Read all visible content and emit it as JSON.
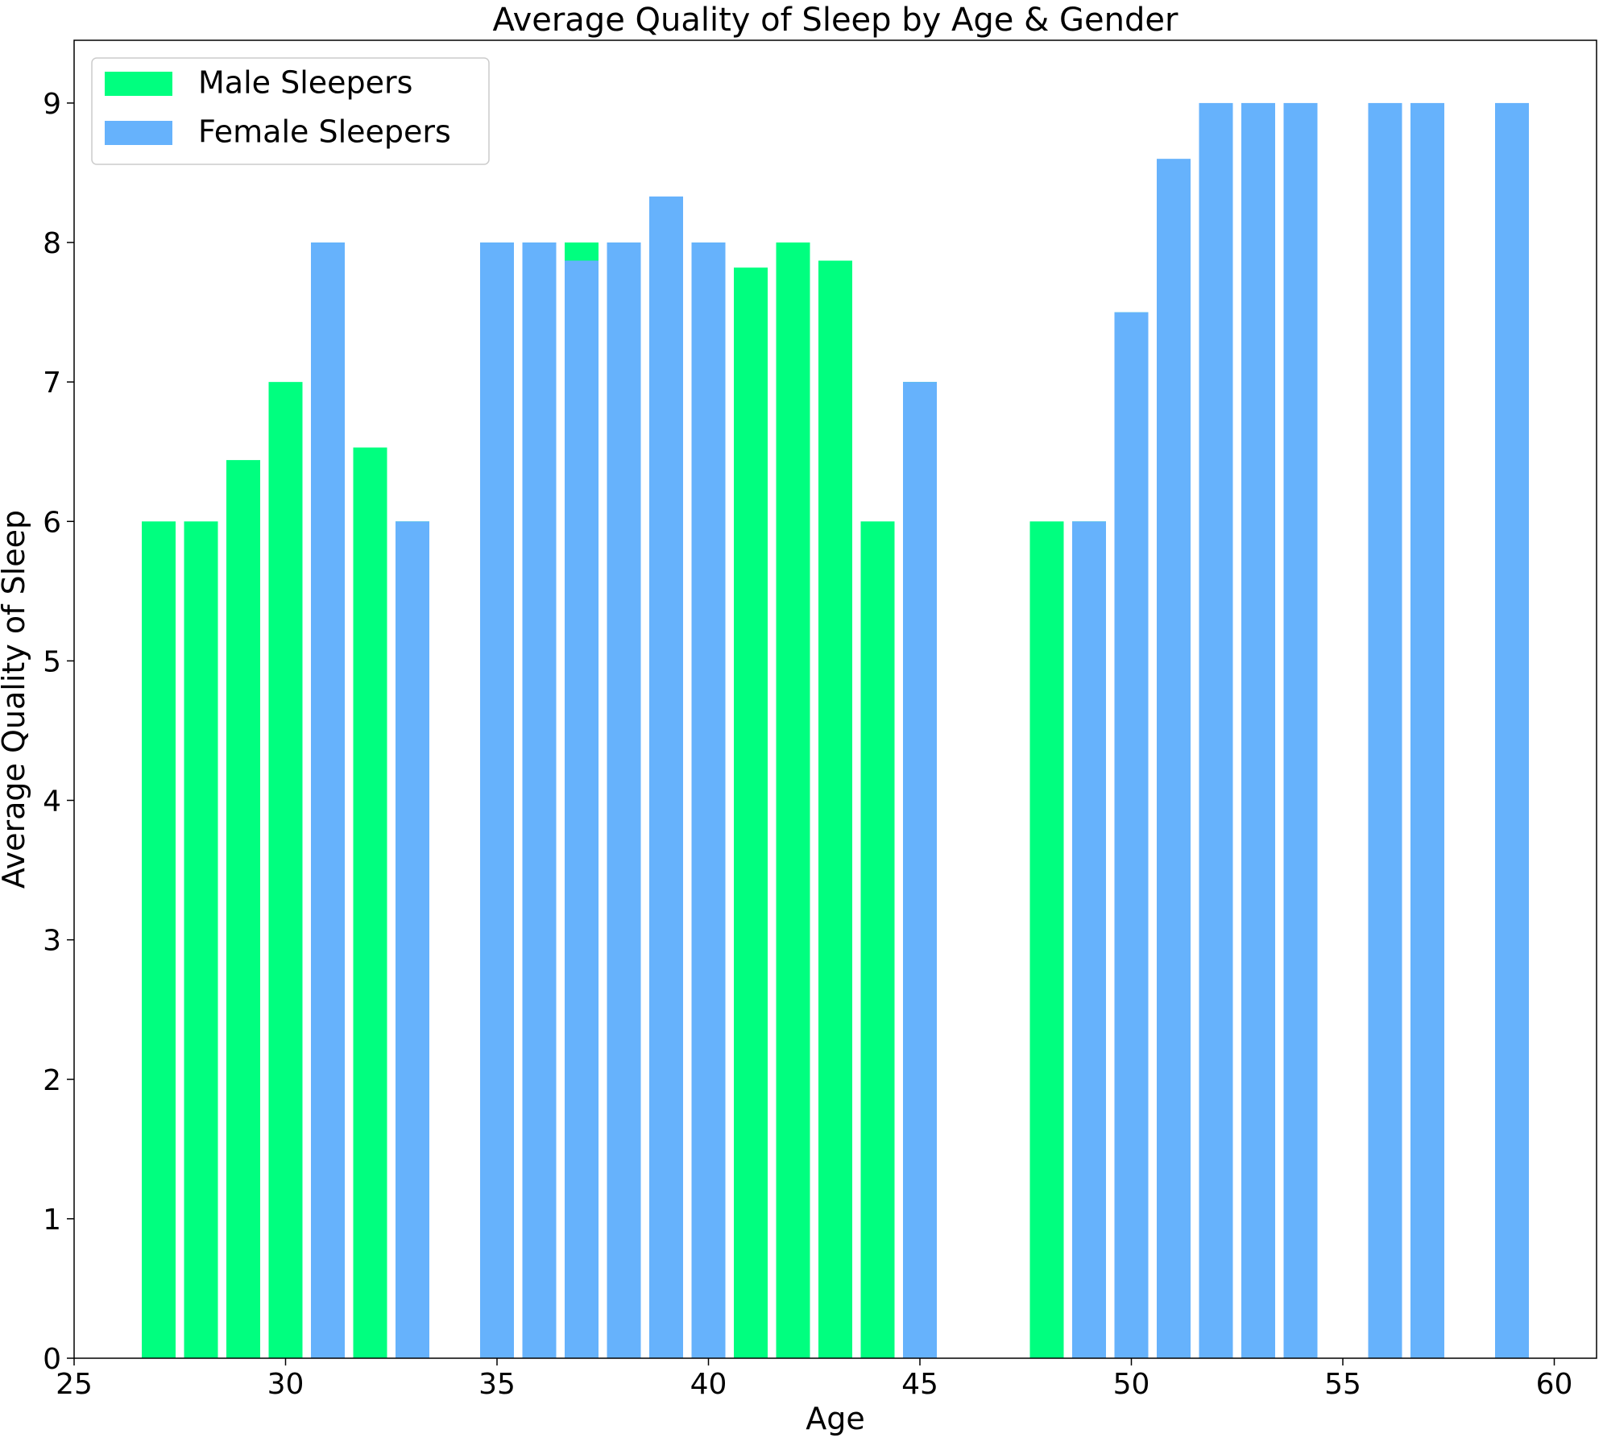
{
  "chart_data": {
    "type": "bar",
    "title": "Average Quality of Sleep by Age & Gender",
    "xlabel": "Age",
    "ylabel": "Average Quality of Sleep",
    "xlim": [
      25,
      61
    ],
    "ylim": [
      0,
      9.45
    ],
    "xticks": [
      25,
      30,
      35,
      40,
      45,
      50,
      55,
      60
    ],
    "yticks": [
      0,
      1,
      2,
      3,
      4,
      5,
      6,
      7,
      8,
      9
    ],
    "bar_width": 0.8,
    "grid": false,
    "legend_position": "upper left",
    "series": [
      {
        "name": "Male Sleepers",
        "color": "#00ff7f",
        "points": [
          {
            "x": 27,
            "y": 6.0
          },
          {
            "x": 28,
            "y": 6.0
          },
          {
            "x": 29,
            "y": 6.44
          },
          {
            "x": 30,
            "y": 7.0
          },
          {
            "x": 31,
            "y": 8.0
          },
          {
            "x": 32,
            "y": 6.53
          },
          {
            "x": 33,
            "y": 6.0
          },
          {
            "x": 35,
            "y": 8.0
          },
          {
            "x": 36,
            "y": 8.0
          },
          {
            "x": 37,
            "y": 8.0
          },
          {
            "x": 38,
            "y": 8.0
          },
          {
            "x": 39,
            "y": 8.0
          },
          {
            "x": 40,
            "y": 8.0
          },
          {
            "x": 41,
            "y": 7.82
          },
          {
            "x": 42,
            "y": 8.0
          },
          {
            "x": 43,
            "y": 7.87
          },
          {
            "x": 44,
            "y": 6.0
          },
          {
            "x": 45,
            "y": 7.0
          },
          {
            "x": 48,
            "y": 6.0
          },
          {
            "x": 49,
            "y": 6.0
          },
          {
            "x": 50,
            "y": 7.5
          }
        ]
      },
      {
        "name": "Female Sleepers",
        "color": "#66b2fc",
        "points": [
          {
            "x": 31,
            "y": 8.0
          },
          {
            "x": 33,
            "y": 6.0
          },
          {
            "x": 35,
            "y": 8.0
          },
          {
            "x": 36,
            "y": 8.0
          },
          {
            "x": 37,
            "y": 7.87
          },
          {
            "x": 38,
            "y": 8.0
          },
          {
            "x": 39,
            "y": 8.33
          },
          {
            "x": 40,
            "y": 8.0
          },
          {
            "x": 45,
            "y": 7.0
          },
          {
            "x": 49,
            "y": 6.0
          },
          {
            "x": 50,
            "y": 7.5
          },
          {
            "x": 51,
            "y": 8.6
          },
          {
            "x": 52,
            "y": 9.0
          },
          {
            "x": 53,
            "y": 9.0
          },
          {
            "x": 54,
            "y": 9.0
          },
          {
            "x": 56,
            "y": 9.0
          },
          {
            "x": 57,
            "y": 9.0
          },
          {
            "x": 59,
            "y": 9.0
          }
        ]
      }
    ]
  }
}
